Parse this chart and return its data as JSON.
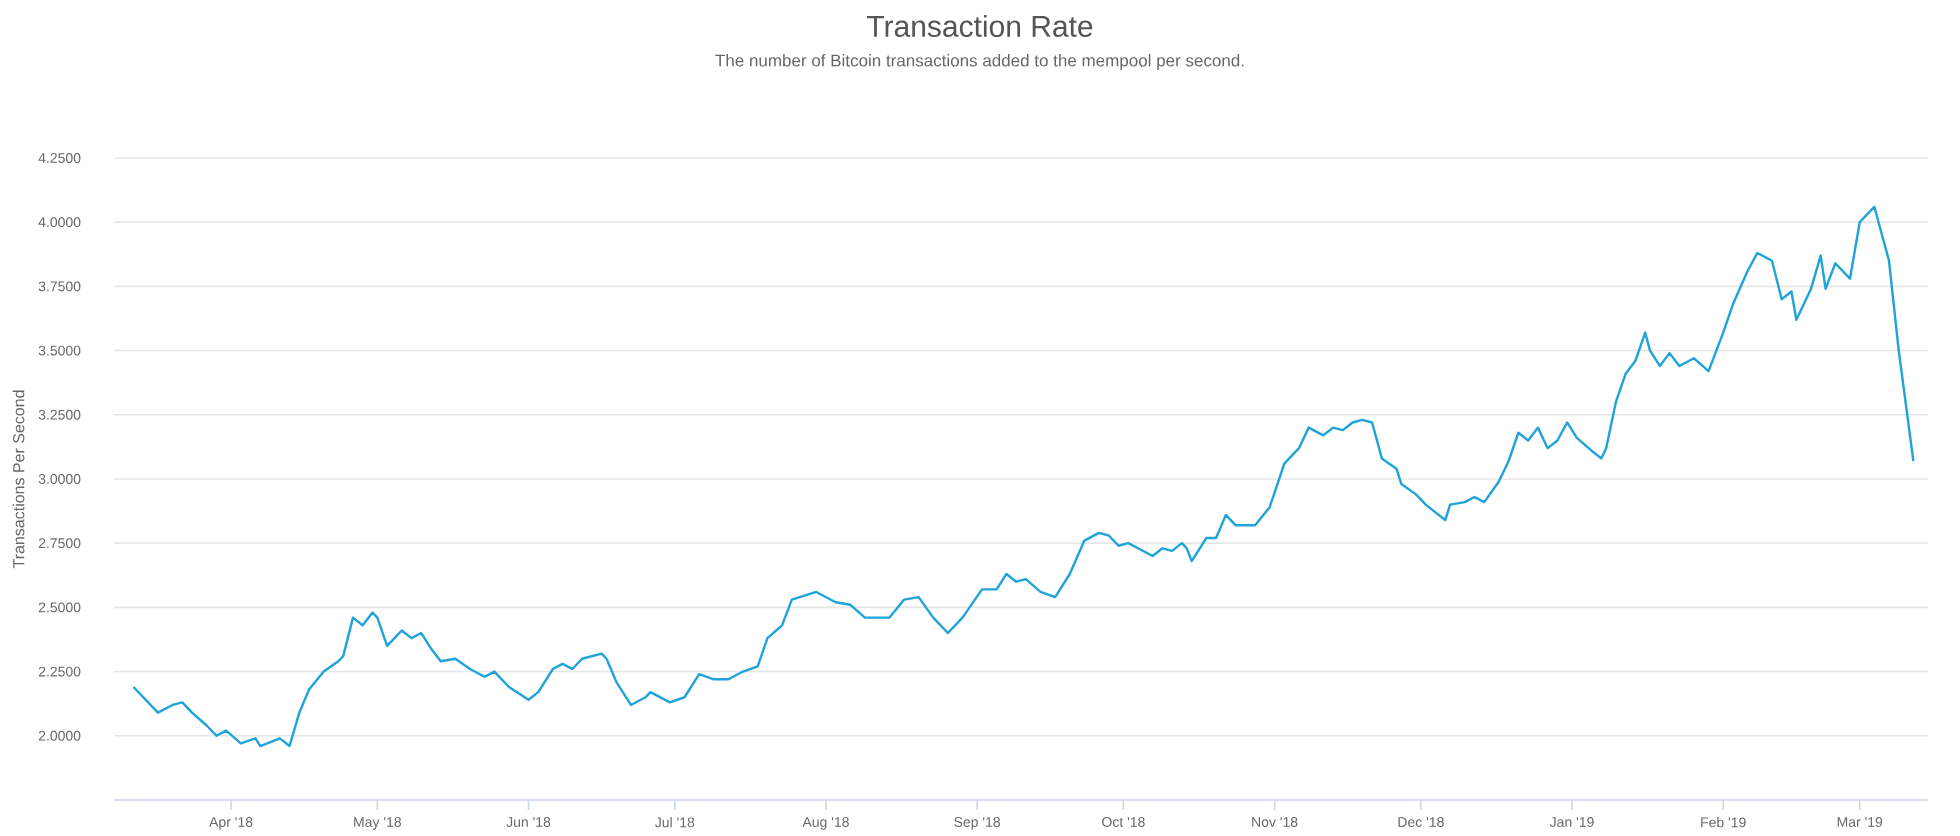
{
  "chart_data": {
    "type": "line",
    "title": "Transaction Rate",
    "subtitle": "The number of Bitcoin transactions added to the mempool per second.",
    "ylabel": "Transactions Per Second",
    "color": "#1fa3d8",
    "grid": "y",
    "xlim": [
      "2018-03-08",
      "2019-03-15"
    ],
    "xticks": [
      {
        "value": "2018-04-01",
        "label": "Apr '18"
      },
      {
        "value": "2018-05-01",
        "label": "May '18"
      },
      {
        "value": "2018-06-01",
        "label": "Jun '18"
      },
      {
        "value": "2018-07-01",
        "label": "Jul '18"
      },
      {
        "value": "2018-08-01",
        "label": "Aug '18"
      },
      {
        "value": "2018-09-01",
        "label": "Sep '18"
      },
      {
        "value": "2018-10-01",
        "label": "Oct '18"
      },
      {
        "value": "2018-11-01",
        "label": "Nov '18"
      },
      {
        "value": "2018-12-01",
        "label": "Dec '18"
      },
      {
        "value": "2019-01-01",
        "label": "Jan '19"
      },
      {
        "value": "2019-02-01",
        "label": "Feb '19"
      },
      {
        "value": "2019-03-01",
        "label": "Mar '19"
      }
    ],
    "ylim": [
      1.75,
      4.25
    ],
    "yticks": [
      {
        "value": 2,
        "label": "2.0000"
      },
      {
        "value": 2.25,
        "label": "2.2500"
      },
      {
        "value": 2.5,
        "label": "2.5000"
      },
      {
        "value": 2.75,
        "label": "2.7500"
      },
      {
        "value": 3,
        "label": "3.0000"
      },
      {
        "value": 3.25,
        "label": "3.2500"
      },
      {
        "value": 3.5,
        "label": "3.5000"
      },
      {
        "value": 3.75,
        "label": "3.7500"
      },
      {
        "value": 4,
        "label": "4.0000"
      },
      {
        "value": 4.25,
        "label": "4.2500"
      }
    ],
    "x": [
      "2018-03-12",
      "2018-03-16",
      "2018-03-17",
      "2018-03-20",
      "2018-03-22",
      "2018-03-24",
      "2018-03-27",
      "2018-03-29",
      "2018-03-31",
      "2018-04-03",
      "2018-04-06",
      "2018-04-07",
      "2018-04-11",
      "2018-04-13",
      "2018-04-15",
      "2018-04-17",
      "2018-04-20",
      "2018-04-23",
      "2018-04-24",
      "2018-04-26",
      "2018-04-28",
      "2018-04-30",
      "2018-05-01",
      "2018-05-03",
      "2018-05-06",
      "2018-05-08",
      "2018-05-10",
      "2018-05-12",
      "2018-05-14",
      "2018-05-17",
      "2018-05-20",
      "2018-05-23",
      "2018-05-25",
      "2018-05-28",
      "2018-06-01",
      "2018-06-03",
      "2018-06-06",
      "2018-06-08",
      "2018-06-10",
      "2018-06-12",
      "2018-06-16",
      "2018-06-17",
      "2018-06-19",
      "2018-06-22",
      "2018-06-25",
      "2018-06-26",
      "2018-06-30",
      "2018-07-03",
      "2018-07-06",
      "2018-07-09",
      "2018-07-12",
      "2018-07-15",
      "2018-07-18",
      "2018-07-20",
      "2018-07-23",
      "2018-07-25",
      "2018-07-30",
      "2018-08-03",
      "2018-08-06",
      "2018-08-09",
      "2018-08-14",
      "2018-08-17",
      "2018-08-20",
      "2018-08-23",
      "2018-08-26",
      "2018-08-29",
      "2018-09-02",
      "2018-09-05",
      "2018-09-07",
      "2018-09-09",
      "2018-09-11",
      "2018-09-14",
      "2018-09-17",
      "2018-09-20",
      "2018-09-23",
      "2018-09-26",
      "2018-09-28",
      "2018-09-30",
      "2018-10-02",
      "2018-10-07",
      "2018-10-09",
      "2018-10-11",
      "2018-10-13",
      "2018-10-14",
      "2018-10-15",
      "2018-10-18",
      "2018-10-20",
      "2018-10-22",
      "2018-10-24",
      "2018-10-28",
      "2018-10-31",
      "2018-11-03",
      "2018-11-06",
      "2018-11-08",
      "2018-11-11",
      "2018-11-13",
      "2018-11-15",
      "2018-11-17",
      "2018-11-19",
      "2018-11-21",
      "2018-11-23",
      "2018-11-26",
      "2018-11-27",
      "2018-11-30",
      "2018-12-02",
      "2018-12-04",
      "2018-12-06",
      "2018-12-07",
      "2018-12-10",
      "2018-12-12",
      "2018-12-14",
      "2018-12-17",
      "2018-12-19",
      "2018-12-21",
      "2018-12-23",
      "2018-12-25",
      "2018-12-27",
      "2018-12-29",
      "2018-12-31",
      "2019-01-02",
      "2019-01-05",
      "2019-01-07",
      "2019-01-08",
      "2019-01-10",
      "2019-01-12",
      "2019-01-14",
      "2019-01-16",
      "2019-01-17",
      "2019-01-19",
      "2019-01-21",
      "2019-01-23",
      "2019-01-26",
      "2019-01-29",
      "2019-02-01",
      "2019-02-03",
      "2019-02-06",
      "2019-02-08",
      "2019-02-11",
      "2019-02-13",
      "2019-02-15",
      "2019-02-16",
      "2019-02-19",
      "2019-02-21",
      "2019-02-22",
      "2019-02-24",
      "2019-02-27",
      "2019-03-01",
      "2019-03-04",
      "2019-03-07",
      "2019-03-09",
      "2019-03-12"
    ],
    "values": [
      2.19,
      2.11,
      2.09,
      2.12,
      2.13,
      2.09,
      2.04,
      2.0,
      2.02,
      1.97,
      1.99,
      1.96,
      1.99,
      1.96,
      2.09,
      2.18,
      2.25,
      2.29,
      2.31,
      2.46,
      2.43,
      2.48,
      2.46,
      2.35,
      2.41,
      2.38,
      2.4,
      2.34,
      2.29,
      2.3,
      2.26,
      2.23,
      2.25,
      2.19,
      2.14,
      2.17,
      2.26,
      2.28,
      2.26,
      2.3,
      2.32,
      2.3,
      2.21,
      2.12,
      2.15,
      2.17,
      2.13,
      2.15,
      2.24,
      2.22,
      2.22,
      2.25,
      2.27,
      2.38,
      2.43,
      2.53,
      2.56,
      2.52,
      2.51,
      2.46,
      2.46,
      2.53,
      2.54,
      2.46,
      2.4,
      2.46,
      2.57,
      2.57,
      2.63,
      2.6,
      2.61,
      2.56,
      2.54,
      2.63,
      2.76,
      2.79,
      2.78,
      2.74,
      2.75,
      2.7,
      2.73,
      2.72,
      2.75,
      2.73,
      2.68,
      2.77,
      2.77,
      2.86,
      2.82,
      2.82,
      2.89,
      3.06,
      3.12,
      3.2,
      3.17,
      3.2,
      3.19,
      3.22,
      3.23,
      3.22,
      3.08,
      3.04,
      2.98,
      2.94,
      2.9,
      2.87,
      2.84,
      2.9,
      2.91,
      2.93,
      2.91,
      2.99,
      3.07,
      3.18,
      3.15,
      3.2,
      3.12,
      3.15,
      3.22,
      3.16,
      3.11,
      3.08,
      3.12,
      3.3,
      3.41,
      3.46,
      3.57,
      3.5,
      3.44,
      3.49,
      3.44,
      3.47,
      3.42,
      3.57,
      3.68,
      3.81,
      3.88,
      3.85,
      3.7,
      3.73,
      3.62,
      3.74,
      3.87,
      3.74,
      3.84,
      3.78,
      4.0,
      4.06,
      3.85,
      3.5,
      3.07
    ]
  }
}
